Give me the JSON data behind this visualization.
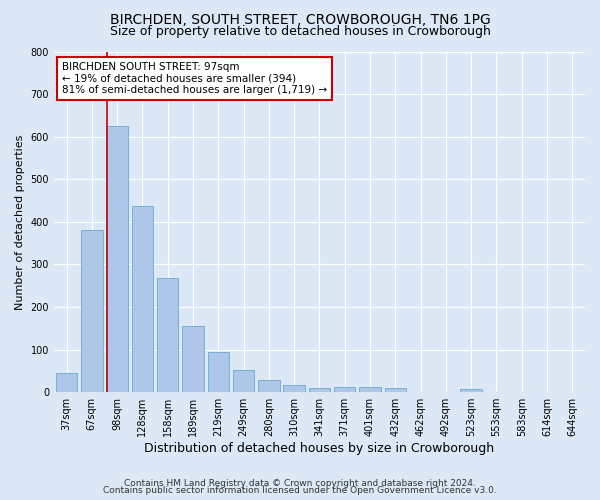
{
  "title": "BIRCHDEN, SOUTH STREET, CROWBOROUGH, TN6 1PG",
  "subtitle": "Size of property relative to detached houses in Crowborough",
  "xlabel": "Distribution of detached houses by size in Crowborough",
  "ylabel": "Number of detached properties",
  "categories": [
    "37sqm",
    "67sqm",
    "98sqm",
    "128sqm",
    "158sqm",
    "189sqm",
    "219sqm",
    "249sqm",
    "280sqm",
    "310sqm",
    "341sqm",
    "371sqm",
    "401sqm",
    "432sqm",
    "462sqm",
    "492sqm",
    "523sqm",
    "553sqm",
    "583sqm",
    "614sqm",
    "644sqm"
  ],
  "values": [
    45,
    380,
    625,
    437,
    268,
    155,
    95,
    52,
    28,
    17,
    10,
    12,
    12,
    10,
    0,
    0,
    8,
    0,
    0,
    0,
    0
  ],
  "bar_color": "#aec6e8",
  "bar_edge_color": "#6aaad4",
  "vline_x_index": 1.6,
  "vline_color": "#cc0000",
  "annotation_text": "BIRCHDEN SOUTH STREET: 97sqm\n← 19% of detached houses are smaller (394)\n81% of semi-detached houses are larger (1,719) →",
  "annotation_box_color": "#ffffff",
  "annotation_box_edge_color": "#cc0000",
  "ylim": [
    0,
    800
  ],
  "yticks": [
    0,
    100,
    200,
    300,
    400,
    500,
    600,
    700,
    800
  ],
  "background_color": "#dce8f5",
  "plot_bg_color": "#dce8f5",
  "footer_line1": "Contains HM Land Registry data © Crown copyright and database right 2024.",
  "footer_line2": "Contains public sector information licensed under the Open Government Licence v3.0.",
  "title_fontsize": 10,
  "subtitle_fontsize": 9,
  "xlabel_fontsize": 9,
  "ylabel_fontsize": 8,
  "tick_fontsize": 7,
  "annotation_fontsize": 7.5,
  "footer_fontsize": 6.5
}
